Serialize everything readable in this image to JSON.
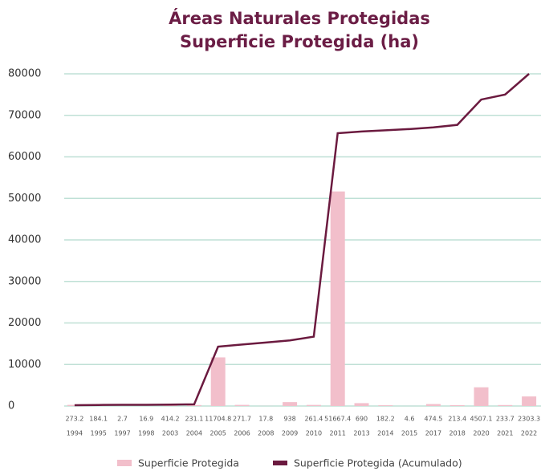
{
  "chart_data": {
    "type": "bar_line",
    "title": "Áreas Naturales Protegidas",
    "subtitle": "Superficie Protegida (ha)",
    "categories": [
      "1994",
      "1995",
      "1997",
      "1998",
      "2003",
      "2004",
      "2005",
      "2006",
      "2008",
      "2009",
      "2010",
      "2011",
      "2013",
      "2014",
      "2015",
      "2017",
      "2018",
      "2020",
      "2021",
      "2022"
    ],
    "series": [
      {
        "name": "Superficie Protegida",
        "color": "#f2bfcb",
        "type": "bar",
        "values": [
          273.2,
          184.1,
          2.7,
          16.9,
          414.2,
          231.1,
          11704.8,
          271.7,
          17.8,
          938,
          261.4,
          51667.4,
          690,
          182.2,
          4.6,
          474.5,
          213.4,
          4507.1,
          233.7,
          2303.3
        ]
      },
      {
        "name": "Superficie Protegida (Acumulado)",
        "color": "#6b1a3f",
        "type": "line",
        "values": [
          200,
          250,
          280,
          300,
          350,
          400,
          14300,
          14800,
          15300,
          15800,
          16700,
          65700,
          66100,
          66400,
          66700,
          67100,
          67700,
          73800,
          75000,
          80000
        ]
      }
    ],
    "ylim": [
      0,
      80000
    ],
    "yticks": [
      0,
      10000,
      20000,
      30000,
      40000,
      50000,
      60000,
      70000,
      80000
    ],
    "grid": true,
    "legend": "bottom"
  }
}
